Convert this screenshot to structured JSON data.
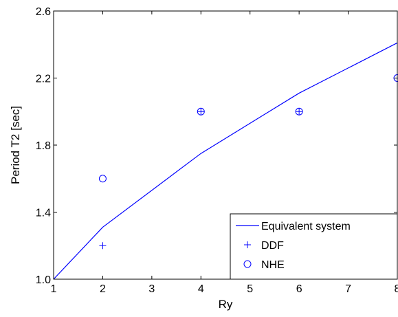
{
  "chart_data": {
    "type": "line",
    "xlabel": "Ry",
    "ylabel": "Period T2 [sec]",
    "xlim": [
      1,
      8
    ],
    "ylim": [
      1.0,
      2.6
    ],
    "x_ticks": [
      1,
      2,
      3,
      4,
      5,
      6,
      7,
      8
    ],
    "x_tick_labels": [
      "1",
      "2",
      "3",
      "4",
      "5",
      "6",
      "7",
      "8"
    ],
    "y_ticks": [
      1.0,
      1.4,
      1.8,
      2.2,
      2.6
    ],
    "y_tick_labels": [
      "1.0",
      "1.4",
      "1.8",
      "2.2",
      "2.6"
    ],
    "grid": false,
    "legend_position": "bottom-right",
    "color": "#0000ff",
    "series": [
      {
        "name": "Equivalent system",
        "style": "line",
        "x": [
          1,
          2,
          4,
          6,
          8
        ],
        "y": [
          1.0,
          1.31,
          1.75,
          2.11,
          2.41
        ]
      },
      {
        "name": "DDF",
        "style": "plus",
        "x": [
          2,
          4,
          6,
          8
        ],
        "y": [
          1.2,
          2.0,
          2.0,
          2.2
        ]
      },
      {
        "name": "NHE",
        "style": "circle",
        "x": [
          2,
          4,
          6,
          8
        ],
        "y": [
          1.6,
          2.0,
          2.0,
          2.2
        ]
      }
    ]
  }
}
